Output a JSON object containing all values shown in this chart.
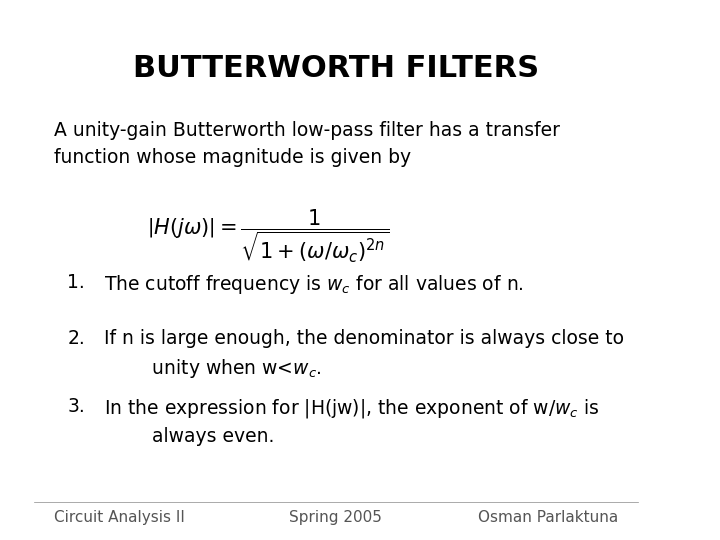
{
  "title": "BUTTERWORTH FILTERS",
  "bg_color": "#ffffff",
  "title_fontsize": 22,
  "body_fontsize": 13.5,
  "footer_fontsize": 11,
  "intro_text": "A unity-gain Butterworth low-pass filter has a transfer\nfunction whose magnitude is given by",
  "footer_left": "Circuit Analysis II",
  "footer_center": "Spring 2005",
  "footer_right": "Osman Parlaktuna",
  "text_color": "#000000",
  "footer_color": "#555555",
  "line_color": "#888888"
}
